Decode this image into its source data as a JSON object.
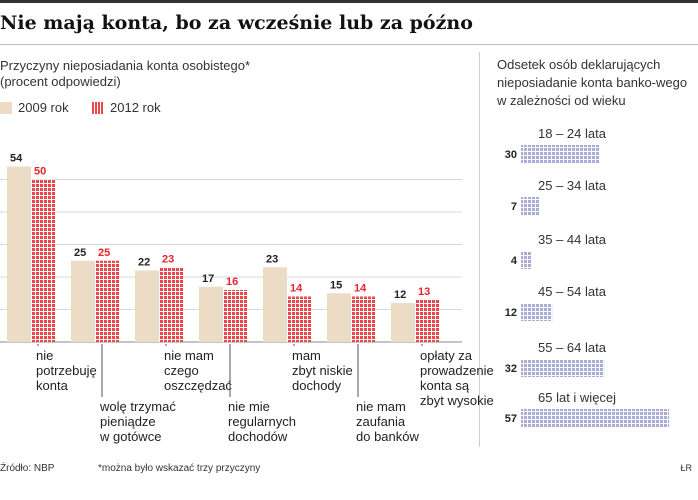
{
  "title": "Nie mają konta, bo za wcześnie lub za późno",
  "left_subtitle": "Przyczyny nieposiadania konta osobistego* (procent odpowiedzi)",
  "right_subtitle": "Odsetek osób deklarujących nieposiadanie konta banko-wego w zależności od wieku",
  "source": "Źródło: NBP",
  "note": "*można było wskazać trzy przyczyny",
  "signature": "ŁR",
  "colors": {
    "y2009": "#ecdcc6",
    "y2012": "#e8474b",
    "age": "#a9acd8",
    "label2012": "#e3252b"
  },
  "chart_data": [
    {
      "type": "bar",
      "title": "Przyczyny nieposiadania konta osobistego* (procent odpowiedzi)",
      "categories": [
        "nie potrzebuję konta",
        "wolę trzymać pieniądze w gotówce",
        "nie mam czego oszczędzać",
        "nie mam regularnych dochodów",
        "mam zbyt niskie dochody",
        "nie mam zaufania do banków",
        "opłaty za prowadzenie konta są zbyt wysokie"
      ],
      "category_lines": [
        [
          "nie",
          "potrzebuję",
          "konta"
        ],
        [
          "wolę trzymać",
          "pieniądze",
          "w gotówce"
        ],
        [
          "nie mam",
          "czego",
          "oszczędzać"
        ],
        [
          "nie mie",
          "regularnych",
          "dochodów"
        ],
        [
          "mam",
          "zbyt niskie",
          "dochody"
        ],
        [
          "nie mam",
          "zaufania",
          "do banków"
        ],
        [
          "opłaty za",
          "prowadzenie",
          "konta są",
          "zbyt wysokie"
        ]
      ],
      "series": [
        {
          "name": "2009 rok",
          "values": [
            54,
            25,
            22,
            17,
            23,
            15,
            12
          ]
        },
        {
          "name": "2012 rok",
          "values": [
            50,
            25,
            23,
            16,
            14,
            14,
            13
          ]
        }
      ],
      "ylim": [
        0,
        60
      ],
      "grid": true,
      "legend": "top-left"
    },
    {
      "type": "bar",
      "orientation": "horizontal",
      "title": "Odsetek osób deklarujących nieposiadanie konta banko-wego w zależności od wieku",
      "categories": [
        "18 – 24 lata",
        "25 – 34 lata",
        "35 – 44 lata",
        "45 – 54 lata",
        "55 – 64 lata",
        "65 lat i więcej"
      ],
      "values": [
        30,
        7,
        4,
        12,
        32,
        57
      ],
      "xlim": [
        0,
        60
      ]
    }
  ]
}
